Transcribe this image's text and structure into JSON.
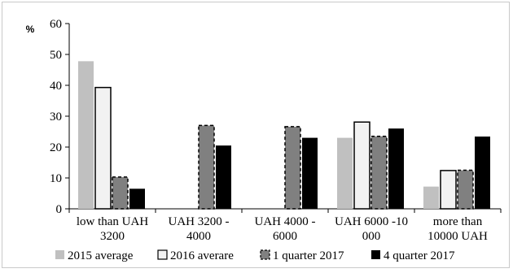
{
  "chart_data": {
    "type": "bar",
    "title": "",
    "xlabel": "",
    "ylabel": "%",
    "ylim": [
      0,
      60
    ],
    "yticks": [
      0,
      10,
      20,
      30,
      40,
      50,
      60
    ],
    "grid": false,
    "legend_position": "bottom",
    "categories": [
      [
        "low than UAH",
        "3200"
      ],
      [
        "UAH 3200 -",
        "4000"
      ],
      [
        "UAH 4000 -",
        "6000"
      ],
      [
        "UAH 6000 -10",
        "000"
      ],
      [
        "more than",
        "10000 UAH"
      ]
    ],
    "series": [
      {
        "name": "2015 average",
        "values": [
          47.8,
          null,
          null,
          23.0,
          7.2
        ],
        "fill": "#c0c0c0",
        "stroke": "none",
        "dashed": false
      },
      {
        "name": "2016 averare",
        "values": [
          39.3,
          null,
          null,
          28.1,
          12.4
        ],
        "fill": "#f2f2f2",
        "stroke": "#000000",
        "dashed": false
      },
      {
        "name": "1 quarter 2017",
        "values": [
          10.3,
          27.0,
          26.6,
          23.5,
          12.5
        ],
        "fill": "#808080",
        "stroke": "#000000",
        "dashed": true
      },
      {
        "name": "4 quarter 2017",
        "values": [
          6.5,
          20.5,
          23.0,
          26.0,
          23.4
        ],
        "fill": "#000000",
        "stroke": "none",
        "dashed": false
      }
    ]
  }
}
